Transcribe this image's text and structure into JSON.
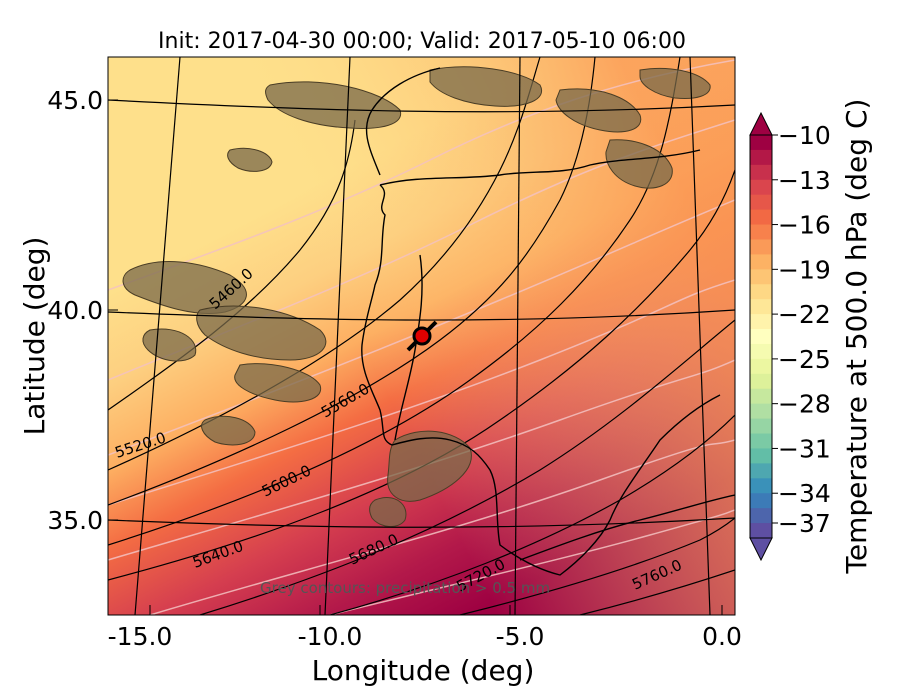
{
  "title": "Init: 2017-04-30 00:00; Valid: 2017-05-10 06:00",
  "xlabel": "Longitude (deg)",
  "ylabel": "Latitude (deg)",
  "colorbar_label": "Temperature at 500.0 hPa (deg C)",
  "note": "Grey contours: precipitation > 0.5 mm",
  "x_ticks": [
    "-15.0",
    "-10.0",
    "-5.0",
    "0.0"
  ],
  "y_ticks": [
    "45.0",
    "40.0",
    "35.0"
  ],
  "colorbar_ticks": [
    "−10",
    "−13",
    "−16",
    "−19",
    "−22",
    "−25",
    "−28",
    "−31",
    "−34",
    "−37"
  ],
  "geopotential_labels": [
    "5460.0",
    "5520.0",
    "5560.0",
    "5600.0",
    "5640.0",
    "5680.0",
    "5720.0",
    "5760.0"
  ],
  "colors": {
    "warm_dark": "#9e0142",
    "warm_mid": "#f46d43",
    "neutral": "#fee08b",
    "cool_mid": "#66c2a5",
    "cool_dark": "#5e4fa2",
    "marker": "#e00000",
    "precip": "#7a6a4a"
  },
  "chart_data": {
    "type": "heatmap",
    "title": "Init: 2017-04-30 00:00; Valid: 2017-05-10 06:00",
    "xlabel": "Longitude (deg)",
    "ylabel": "Latitude (deg)",
    "xlim": [
      -16,
      0.3
    ],
    "ylim": [
      32.5,
      46.3
    ],
    "colorbar": {
      "label": "Temperature at 500.0 hPa (deg C)",
      "min": -37,
      "max": -10,
      "ticks": [
        -10,
        -13,
        -16,
        -19,
        -22,
        -25,
        -28,
        -31,
        -34,
        -37
      ],
      "extend": "both",
      "colormap": "Spectral"
    },
    "contours": {
      "variable": "geopotential height",
      "labeled_levels": [
        5460,
        5520,
        5560,
        5600,
        5640,
        5680,
        5720,
        5760
      ]
    },
    "marker": {
      "lon": -7.6,
      "lat": 39.3
    },
    "grid": true
  }
}
